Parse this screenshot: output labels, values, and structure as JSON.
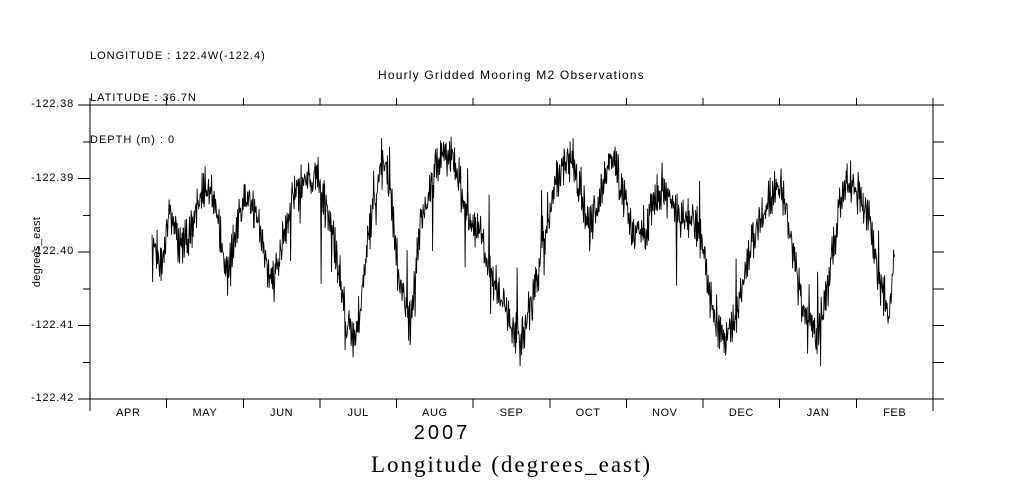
{
  "header": {
    "longitude_line": "LONGITUDE : 122.4W(-122.4)",
    "latitude_line": "LATITUDE : 36.7N",
    "depth_line": "DEPTH (m) : 0"
  },
  "chart_data": {
    "type": "line",
    "title": "Hourly Gridded Mooring M2 Observations",
    "caption": "Longitude (degrees_east)",
    "ylabel": "degrees_east",
    "x_axis": {
      "unit": "months since 2007-04-01",
      "month_labels": [
        "APR",
        "MAY",
        "JUN",
        "JUL",
        "AUG",
        "SEP",
        "OCT",
        "NOV",
        "DEC",
        "JAN",
        "FEB"
      ],
      "year_label": "2007"
    },
    "y_axis": {
      "min": -122.42,
      "max": -122.38,
      "major_tick_values": [
        -122.38,
        -122.39,
        -122.4,
        -122.41,
        -122.42
      ],
      "major_tick_labels": [
        "-122.38",
        "-122.39",
        "-122.40",
        "-122.41",
        "-122.42"
      ],
      "minor_tick_step": 0.005,
      "grid": false
    },
    "series": [
      {
        "name": "Longitude (degrees_east)",
        "color": "#000000",
        "coverage": "late APR 2007 through mid FEB 2008, hourly",
        "trend": [
          [
            0.81,
            -122.398
          ],
          [
            0.95,
            -122.402
          ],
          [
            1.04,
            -122.394
          ],
          [
            1.15,
            -122.399
          ],
          [
            1.3,
            -122.398
          ],
          [
            1.44,
            -122.392
          ],
          [
            1.57,
            -122.391
          ],
          [
            1.7,
            -122.398
          ],
          [
            1.8,
            -122.403
          ],
          [
            1.9,
            -122.397
          ],
          [
            2.04,
            -122.392
          ],
          [
            2.17,
            -122.395
          ],
          [
            2.3,
            -122.402
          ],
          [
            2.4,
            -122.404
          ],
          [
            2.53,
            -122.398
          ],
          [
            2.64,
            -122.392
          ],
          [
            2.79,
            -122.391
          ],
          [
            2.95,
            -122.389
          ],
          [
            3.08,
            -122.394
          ],
          [
            3.21,
            -122.4
          ],
          [
            3.34,
            -122.41
          ],
          [
            3.47,
            -122.412
          ],
          [
            3.6,
            -122.401
          ],
          [
            3.71,
            -122.393
          ],
          [
            3.81,
            -122.387
          ],
          [
            3.91,
            -122.391
          ],
          [
            4.05,
            -122.404
          ],
          [
            4.18,
            -122.41
          ],
          [
            4.31,
            -122.396
          ],
          [
            4.44,
            -122.391
          ],
          [
            4.59,
            -122.387
          ],
          [
            4.75,
            -122.387
          ],
          [
            4.91,
            -122.395
          ],
          [
            5.09,
            -122.398
          ],
          [
            5.27,
            -122.404
          ],
          [
            5.45,
            -122.409
          ],
          [
            5.61,
            -122.412
          ],
          [
            5.77,
            -122.407
          ],
          [
            5.92,
            -122.399
          ],
          [
            6.08,
            -122.39
          ],
          [
            6.24,
            -122.387
          ],
          [
            6.39,
            -122.391
          ],
          [
            6.52,
            -122.397
          ],
          [
            6.65,
            -122.392
          ],
          [
            6.81,
            -122.387
          ],
          [
            6.94,
            -122.391
          ],
          [
            7.07,
            -122.398
          ],
          [
            7.23,
            -122.398
          ],
          [
            7.39,
            -122.392
          ],
          [
            7.54,
            -122.393
          ],
          [
            7.7,
            -122.396
          ],
          [
            7.86,
            -122.395
          ],
          [
            7.99,
            -122.398
          ],
          [
            8.12,
            -122.409
          ],
          [
            8.27,
            -122.412
          ],
          [
            8.43,
            -122.409
          ],
          [
            8.59,
            -122.4
          ],
          [
            8.74,
            -122.396
          ],
          [
            8.9,
            -122.392
          ],
          [
            9.03,
            -122.391
          ],
          [
            9.16,
            -122.399
          ],
          [
            9.32,
            -122.408
          ],
          [
            9.47,
            -122.412
          ],
          [
            9.63,
            -122.405
          ],
          [
            9.76,
            -122.395
          ],
          [
            9.89,
            -122.39
          ],
          [
            10.02,
            -122.392
          ],
          [
            10.15,
            -122.395
          ],
          [
            10.31,
            -122.404
          ],
          [
            10.44,
            -122.409
          ],
          [
            10.5,
            -122.4
          ]
        ],
        "noise": {
          "jitter": 0.0021,
          "tidal_amp": 0.0011,
          "spike_prob": 0.05,
          "spike_amp": 0.005,
          "rare_spike_prob": 0.008,
          "rare_spike_amp": 0.009,
          "seed": 13,
          "clip": [
            -122.4155,
            -122.3835
          ]
        }
      }
    ]
  }
}
